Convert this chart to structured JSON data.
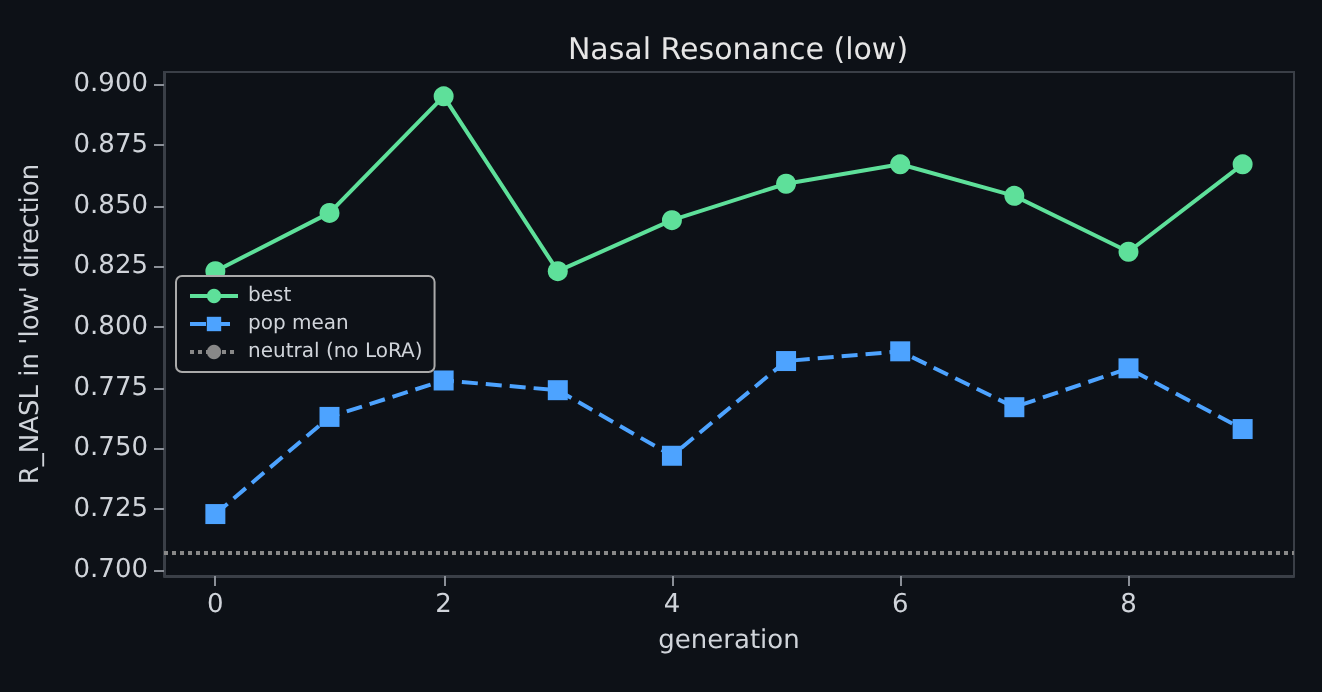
{
  "chart_data": {
    "type": "line",
    "title": "Nasal Resonance (low)",
    "xlabel": "generation",
    "ylabel": "R_NASL in 'low' direction",
    "x": [
      0,
      1,
      2,
      3,
      4,
      5,
      6,
      7,
      8,
      9
    ],
    "series": [
      {
        "name": "best",
        "color": "#5ee09a",
        "marker": "circle",
        "line_style": "solid",
        "values": [
          0.823,
          0.847,
          0.895,
          0.823,
          0.844,
          0.859,
          0.867,
          0.854,
          0.831,
          0.867
        ]
      },
      {
        "name": "pop mean",
        "color": "#4da3ff",
        "marker": "square",
        "line_style": "dashed",
        "values": [
          0.723,
          0.763,
          0.778,
          0.774,
          0.747,
          0.786,
          0.79,
          0.767,
          0.783,
          0.758
        ]
      }
    ],
    "ref_lines": [
      {
        "axis": "y",
        "value": 0.707,
        "label": "neutral (no LoRA)",
        "color": "#888888",
        "line_style": "dotted"
      }
    ],
    "xlim": [
      -0.45,
      9.45
    ],
    "xticks": [
      0,
      2,
      4,
      6,
      8
    ],
    "ylim": [
      0.6975,
      0.905
    ],
    "yticks": [
      {
        "value": 0.7,
        "label": "0.700"
      },
      {
        "value": 0.725,
        "label": "0.725"
      },
      {
        "value": 0.75,
        "label": "0.750"
      },
      {
        "value": 0.775,
        "label": "0.775"
      },
      {
        "value": 0.8,
        "label": "0.800"
      },
      {
        "value": 0.825,
        "label": "0.825"
      },
      {
        "value": 0.85,
        "label": "0.850"
      },
      {
        "value": 0.875,
        "label": "0.875"
      },
      {
        "value": 0.9,
        "label": "0.900"
      }
    ],
    "grid": false,
    "legend": "left"
  }
}
